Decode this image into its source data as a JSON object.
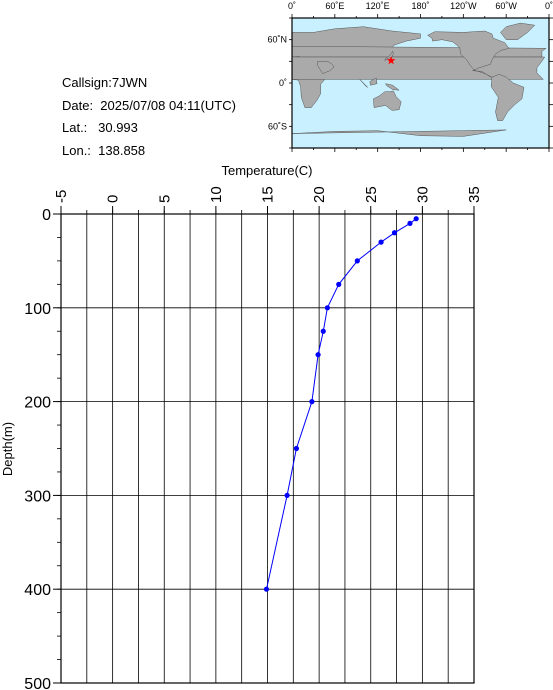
{
  "info": {
    "callsign": "Callsign:7JWN",
    "date": "Date:  2025/07/08 04:11(UTC)",
    "lat": "Lat.:   30.993",
    "lon": "Lon.:  138.858"
  },
  "map": {
    "lon_labels": [
      "0˚",
      "60˚E",
      "120˚E",
      "180˚",
      "120˚W",
      "60˚W",
      "0˚"
    ],
    "lat_labels": [
      "60˚N",
      "0˚",
      "60˚S"
    ],
    "station": {
      "lat": 30.993,
      "lon": 138.858
    },
    "ocean_color": "#c8f0ff",
    "land_color": "#aaaaaa",
    "marker_color": "#ff0000"
  },
  "chart_data": {
    "type": "line",
    "xlabel": "Temperature(C)",
    "ylabel": "Depth(m)",
    "xlim": [
      -5,
      35
    ],
    "ylim": [
      0,
      500
    ],
    "y_inverted": true,
    "x_axis_position": "top",
    "x_ticks": [
      -5,
      0,
      5,
      10,
      15,
      20,
      25,
      30,
      35
    ],
    "y_ticks": [
      0,
      100,
      200,
      300,
      400,
      500
    ],
    "grid": true,
    "line_color": "#0000ff",
    "points": [
      {
        "t": 29.4,
        "d": 5
      },
      {
        "t": 28.8,
        "d": 10
      },
      {
        "t": 27.3,
        "d": 20
      },
      {
        "t": 26.0,
        "d": 30
      },
      {
        "t": 23.7,
        "d": 50
      },
      {
        "t": 21.9,
        "d": 75
      },
      {
        "t": 20.8,
        "d": 100
      },
      {
        "t": 20.4,
        "d": 125
      },
      {
        "t": 19.9,
        "d": 150
      },
      {
        "t": 19.3,
        "d": 200
      },
      {
        "t": 17.8,
        "d": 250
      },
      {
        "t": 16.9,
        "d": 300
      },
      {
        "t": 14.9,
        "d": 400
      }
    ]
  }
}
